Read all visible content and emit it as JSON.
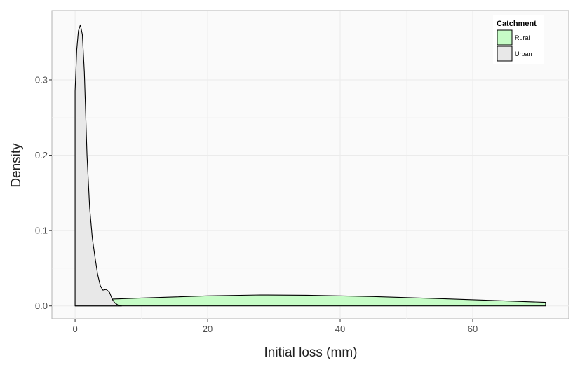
{
  "chart_data": {
    "type": "area",
    "subtype": "density",
    "xlabel": "Initial loss (mm)",
    "ylabel": "Density",
    "xlim": [
      -3.5,
      74.5
    ],
    "ylim": [
      -0.017,
      0.392
    ],
    "x_ticks": [
      0,
      20,
      40,
      60
    ],
    "y_ticks": [
      0.0,
      0.1,
      0.2,
      0.3
    ],
    "x_tick_labels": [
      "0",
      "20",
      "40",
      "60"
    ],
    "y_tick_labels": [
      "0.0",
      "0.1",
      "0.2",
      "0.3"
    ],
    "grid": true,
    "legend": {
      "title": "Catchment",
      "position": "top-right",
      "entries": [
        "Rural",
        "Urban"
      ]
    },
    "series": [
      {
        "name": "Rural",
        "color": "#c6fcc6",
        "x": [
          0,
          10,
          20,
          28,
          35,
          45,
          55,
          65,
          71
        ],
        "y": [
          0.0072,
          0.0105,
          0.0134,
          0.0146,
          0.0142,
          0.0125,
          0.0097,
          0.0066,
          0.0048
        ]
      },
      {
        "name": "Urban",
        "color": "#e8e8e8",
        "x": [
          0,
          0.25,
          0.5,
          0.8,
          1.1,
          1.4,
          1.8,
          2.2,
          2.6,
          3.0,
          3.4,
          3.8,
          4.2,
          4.7,
          5.2,
          5.6,
          6.0,
          6.5,
          7.0
        ],
        "y": [
          0.285,
          0.34,
          0.365,
          0.373,
          0.36,
          0.31,
          0.2,
          0.13,
          0.09,
          0.065,
          0.042,
          0.027,
          0.021,
          0.022,
          0.018,
          0.009,
          0.004,
          0.001,
          0.0
        ]
      }
    ]
  }
}
